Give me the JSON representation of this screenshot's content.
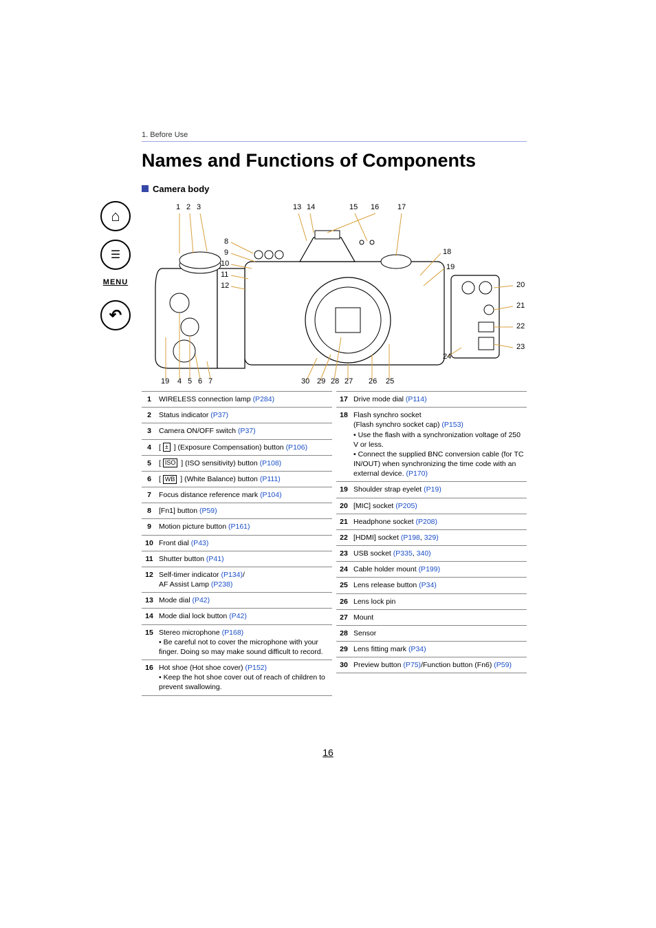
{
  "breadcrumb": "1. Before Use",
  "page_title": "Names and Functions of Components",
  "subheading": "Camera body",
  "page_number": "16",
  "sidebar": {
    "menu_label": "MENU"
  },
  "callouts_top": [
    "1",
    "2",
    "3",
    "13",
    "14",
    "15",
    "16",
    "17"
  ],
  "callouts_right": [
    "18",
    "19",
    "20",
    "21",
    "22",
    "23"
  ],
  "callouts_right_inner": "24",
  "callouts_left_bottom": [
    "19",
    "4",
    "5",
    "6",
    "7"
  ],
  "callouts_left_mid": [
    "8",
    "9",
    "10",
    "11",
    "12"
  ],
  "callouts_bottom": [
    "30",
    "29",
    "28",
    "27",
    "26",
    "25"
  ],
  "left_table": [
    {
      "n": "1",
      "text": "WIRELESS connection lamp ",
      "refs": [
        {
          "t": "(P284)",
          "p": "P284"
        }
      ]
    },
    {
      "n": "2",
      "text": "Status indicator ",
      "refs": [
        {
          "t": "(P37)",
          "p": "P37"
        }
      ]
    },
    {
      "n": "3",
      "text": "Camera ON/OFF switch ",
      "refs": [
        {
          "t": "(P37)",
          "p": "P37"
        }
      ]
    },
    {
      "n": "4",
      "icon": "±",
      "text": " (Exposure Compensation) button ",
      "refs": [
        {
          "t": "(P106)",
          "p": "P106"
        }
      ]
    },
    {
      "n": "5",
      "icon": "ISO",
      "text": " (ISO sensitivity) button ",
      "refs": [
        {
          "t": "(P108)",
          "p": "P108"
        }
      ]
    },
    {
      "n": "6",
      "icon": "WB",
      "text": " (White Balance) button ",
      "refs": [
        {
          "t": "(P111)",
          "p": "P111"
        }
      ]
    },
    {
      "n": "7",
      "text": "Focus distance reference mark ",
      "refs": [
        {
          "t": "(P104)",
          "p": "P104"
        }
      ]
    },
    {
      "n": "8",
      "text": "[Fn1] button ",
      "refs": [
        {
          "t": "(P59)",
          "p": "P59"
        }
      ]
    },
    {
      "n": "9",
      "text": "Motion picture button ",
      "refs": [
        {
          "t": "(P161)",
          "p": "P161"
        }
      ]
    },
    {
      "n": "10",
      "text": "Front dial ",
      "refs": [
        {
          "t": "(P43)",
          "p": "P43"
        }
      ]
    },
    {
      "n": "11",
      "text": "Shutter button ",
      "refs": [
        {
          "t": "(P41)",
          "p": "P41"
        }
      ]
    },
    {
      "n": "12",
      "html": "Self-timer indicator <a class='ref'>(P134)</a>/<br>AF Assist Lamp <a class='ref'>(P238)</a>"
    },
    {
      "n": "13",
      "text": "Mode dial ",
      "refs": [
        {
          "t": "(P42)",
          "p": "P42"
        }
      ]
    },
    {
      "n": "14",
      "text": "Mode dial lock button ",
      "refs": [
        {
          "t": "(P42)",
          "p": "P42"
        }
      ]
    },
    {
      "n": "15",
      "html": "Stereo microphone <a class='ref'>(P168)</a><br>• Be careful not to cover the microphone with your finger. Doing so may make sound difficult to record."
    },
    {
      "n": "16",
      "html": "Hot shoe (Hot shoe cover) <a class='ref'>(P152)</a><br>• Keep the hot shoe cover out of reach of children to prevent swallowing."
    }
  ],
  "right_table": [
    {
      "n": "17",
      "text": "Drive mode dial ",
      "refs": [
        {
          "t": "(P114)",
          "p": "P114"
        }
      ]
    },
    {
      "n": "18",
      "html": "Flash synchro socket<br>(Flash synchro socket cap) <a class='ref'>(P153)</a><br>• Use the flash with a synchronization voltage of 250 V or less.<br>• Connect the supplied BNC conversion cable (for TC IN/OUT) when synchronizing the time code with an external device. <a class='ref'>(P170)</a>"
    },
    {
      "n": "19",
      "text": "Shoulder strap eyelet ",
      "refs": [
        {
          "t": "(P19)",
          "p": "P19"
        }
      ]
    },
    {
      "n": "20",
      "text": "[MIC] socket ",
      "refs": [
        {
          "t": "(P205)",
          "p": "P205"
        }
      ]
    },
    {
      "n": "21",
      "text": "Headphone socket ",
      "refs": [
        {
          "t": "(P208)",
          "p": "P208"
        }
      ]
    },
    {
      "n": "22",
      "html": "[HDMI] socket <a class='ref'>(P198</a>, <a class='ref'>329)</a>"
    },
    {
      "n": "23",
      "html": "USB socket <a class='ref'>(P335</a>, <a class='ref'>340)</a>"
    },
    {
      "n": "24",
      "text": "Cable holder mount ",
      "refs": [
        {
          "t": "(P199)",
          "p": "P199"
        }
      ]
    },
    {
      "n": "25",
      "text": "Lens release button ",
      "refs": [
        {
          "t": "(P34)",
          "p": "P34"
        }
      ]
    },
    {
      "n": "26",
      "text": "Lens lock pin"
    },
    {
      "n": "27",
      "text": "Mount"
    },
    {
      "n": "28",
      "text": "Sensor"
    },
    {
      "n": "29",
      "text": "Lens fitting mark ",
      "refs": [
        {
          "t": "(P34)",
          "p": "P34"
        }
      ]
    },
    {
      "n": "30",
      "html": "Preview button <a class='ref'>(P75)</a>/Function button (Fn6) <a class='ref'>(P59)</a>"
    }
  ],
  "colors": {
    "link": "#1a4ec8",
    "accent": "#3747a8",
    "leader": "#d9a03c"
  }
}
